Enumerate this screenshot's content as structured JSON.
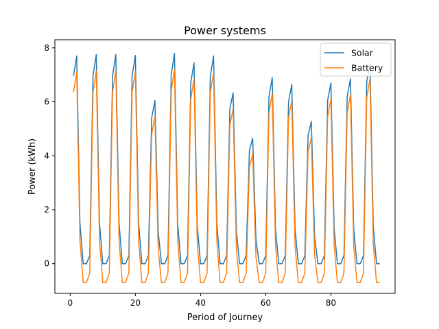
{
  "chart_data": {
    "type": "line",
    "title": "Power systems",
    "xlabel": "Period of Journey",
    "ylabel": "Power (kWh)",
    "xlim": [
      -4.7,
      99.7
    ],
    "ylim": [
      -1.1,
      8.3
    ],
    "xticks": [
      0,
      20,
      40,
      60,
      80
    ],
    "yticks": [
      0,
      2,
      4,
      6,
      8
    ],
    "legend_position": "top-right",
    "grid": false,
    "x": [
      1,
      2,
      3,
      4,
      5,
      6,
      7,
      8,
      9,
      10,
      11,
      12,
      13,
      14,
      15,
      16,
      17,
      18,
      19,
      20,
      21,
      22,
      23,
      24,
      25,
      26,
      27,
      28,
      29,
      30,
      31,
      32,
      33,
      34,
      35,
      36,
      37,
      38,
      39,
      40,
      41,
      42,
      43,
      44,
      45,
      46,
      47,
      48,
      49,
      50,
      51,
      52,
      53,
      54,
      55,
      56,
      57,
      58,
      59,
      60,
      61,
      62,
      63,
      64,
      65,
      66,
      67,
      68,
      69,
      70,
      71,
      72,
      73,
      74,
      75,
      76,
      77,
      78,
      79,
      80,
      81,
      82,
      83,
      84,
      85,
      86,
      87,
      88,
      89,
      90,
      91,
      92,
      93,
      94,
      95
    ],
    "series": [
      {
        "name": "Solar",
        "color": "#1f77b4",
        "values": [
          6.95,
          7.7,
          1.5,
          0,
          0,
          0.3,
          6.95,
          7.75,
          1.5,
          0,
          0,
          0.3,
          6.95,
          7.75,
          1.5,
          0,
          0,
          0.3,
          6.95,
          7.72,
          1.5,
          0,
          0,
          0.3,
          5.4,
          6.05,
          1.2,
          0,
          0,
          0.3,
          7.0,
          7.8,
          1.5,
          0,
          0,
          0.3,
          6.7,
          7.45,
          1.4,
          0,
          0,
          0.3,
          6.95,
          7.7,
          1.5,
          0,
          0,
          0.3,
          5.75,
          6.33,
          1.2,
          0,
          0,
          0.3,
          4.2,
          4.65,
          0.9,
          0,
          0,
          0.3,
          6.2,
          6.9,
          1.3,
          0,
          0,
          0.3,
          6.0,
          6.65,
          1.3,
          0,
          0,
          0.3,
          4.75,
          5.27,
          1.0,
          0,
          0,
          0.3,
          6.05,
          6.7,
          1.3,
          0,
          0,
          0.3,
          6.2,
          6.85,
          1.3,
          0,
          0,
          0.3,
          6.75,
          7.45,
          1.4,
          0,
          0
        ]
      },
      {
        "name": "Battery",
        "color": "#ff7f0e",
        "values": [
          6.35,
          7.1,
          0.85,
          -0.7,
          -0.7,
          -0.35,
          6.35,
          7.15,
          0.85,
          -0.7,
          -0.7,
          -0.35,
          6.35,
          7.15,
          0.85,
          -0.7,
          -0.7,
          -0.35,
          6.35,
          7.12,
          0.85,
          -0.7,
          -0.7,
          -0.35,
          4.8,
          5.45,
          0.55,
          -0.7,
          -0.7,
          -0.35,
          6.4,
          7.2,
          0.85,
          -0.7,
          -0.7,
          -0.35,
          6.1,
          6.85,
          0.75,
          -0.7,
          -0.7,
          -0.35,
          6.35,
          7.1,
          0.85,
          -0.7,
          -0.7,
          -0.35,
          5.15,
          5.73,
          0.55,
          -0.7,
          -0.7,
          -0.35,
          3.6,
          4.05,
          0.25,
          -0.7,
          -0.7,
          -0.35,
          5.6,
          6.3,
          0.65,
          -0.7,
          -0.7,
          -0.35,
          5.4,
          6.05,
          0.65,
          -0.7,
          -0.7,
          -0.35,
          4.15,
          4.67,
          0.35,
          -0.7,
          -0.7,
          -0.35,
          5.45,
          6.1,
          0.65,
          -0.7,
          -0.7,
          -0.35,
          5.6,
          6.25,
          0.65,
          -0.7,
          -0.7,
          -0.35,
          6.15,
          6.85,
          0.75,
          -0.7,
          -0.7
        ]
      }
    ]
  }
}
